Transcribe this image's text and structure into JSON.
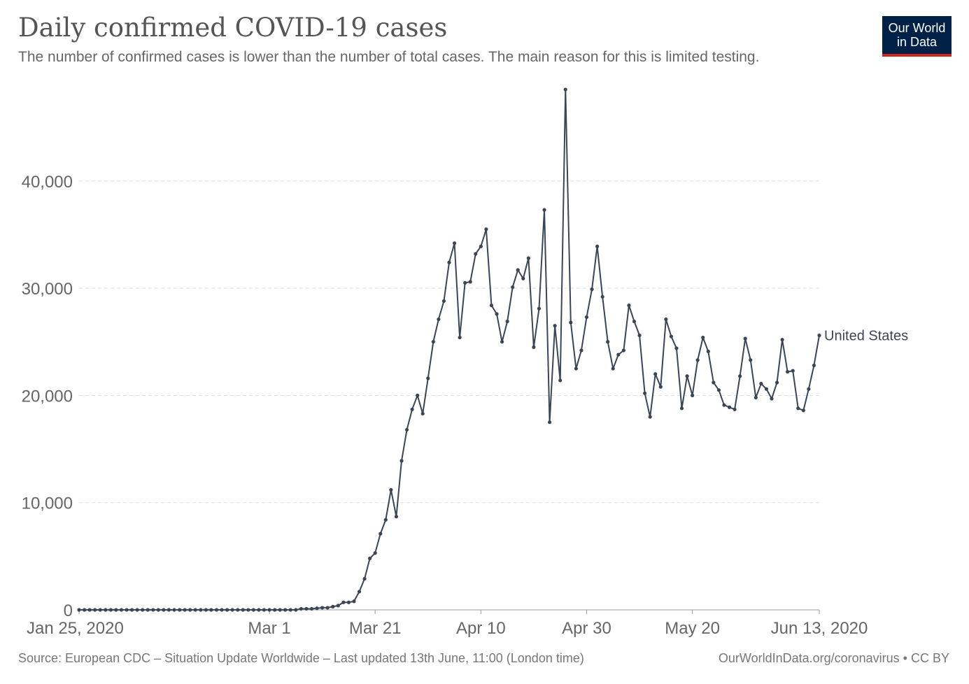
{
  "header": {
    "title": "Daily confirmed COVID-19 cases",
    "subtitle": "The number of confirmed cases is lower than the number of total cases. The main reason for this is limited testing."
  },
  "logo": {
    "line1": "Our World",
    "line2": "in Data",
    "background": "#002147",
    "accent": "#ce261e"
  },
  "footer": {
    "source": "Source: European CDC – Situation Update Worldwide – Last updated 13th June, 11:00 (London time)",
    "link": "OurWorldInData.org/coronavirus • CC BY"
  },
  "colors": {
    "series": "#3a4556",
    "grid": "#dddddd",
    "axis": "#999999",
    "text": "#666666"
  },
  "chart_data": {
    "type": "line",
    "title": "Daily confirmed COVID-19 cases",
    "xlabel": "",
    "ylabel": "",
    "x_start": "2020-01-25",
    "x_end": "2020-06-13",
    "xlim": [
      "Jan 25, 2020",
      "Jun 13, 2020"
    ],
    "ylim": [
      0,
      48529
    ],
    "y_ticks": [
      0,
      10000,
      20000,
      30000,
      40000
    ],
    "y_tick_labels": [
      "0",
      "10,000",
      "20,000",
      "30,000",
      "40,000"
    ],
    "x_ticks": [
      "2020-01-25",
      "2020-03-01",
      "2020-03-21",
      "2020-04-10",
      "2020-04-30",
      "2020-05-20",
      "2020-06-13"
    ],
    "x_tick_labels": [
      "Jan 25, 2020",
      "Mar 1",
      "Mar 21",
      "Apr 10",
      "Apr 30",
      "May 20",
      "Jun 13, 2020"
    ],
    "grid": "horizontal dashed",
    "legend": "inline label at line end",
    "series": [
      {
        "name": "United States",
        "color": "#3a4556",
        "values": [
          0,
          0,
          0,
          0,
          0,
          0,
          0,
          0,
          0,
          0,
          0,
          0,
          0,
          0,
          0,
          0,
          0,
          0,
          0,
          0,
          0,
          0,
          0,
          0,
          0,
          0,
          0,
          0,
          0,
          0,
          0,
          0,
          0,
          0,
          0,
          0,
          0,
          0,
          0,
          0,
          0,
          0,
          100,
          100,
          100,
          150,
          200,
          200,
          300,
          400,
          700,
          700,
          800,
          1700,
          2900,
          4800,
          5300,
          7100,
          8400,
          11200,
          8700,
          13900,
          16800,
          18700,
          20000,
          18300,
          21600,
          25000,
          27100,
          28800,
          32400,
          34200,
          25400,
          30500,
          30600,
          33200,
          33900,
          35500,
          28400,
          27600,
          25000,
          26900,
          30100,
          31700,
          30900,
          32800,
          24500,
          28100,
          37300,
          17500,
          26500,
          21400,
          48529,
          26800,
          22500,
          24200,
          27300,
          29900,
          33900,
          29200,
          25000,
          22500,
          23800,
          24200,
          28400,
          26900,
          25600,
          20200,
          18000,
          22000,
          20800,
          27100,
          25500,
          24400,
          18800,
          21800,
          20000,
          23300,
          25400,
          24100,
          21200,
          20500,
          19100,
          18900,
          18700,
          21800,
          25300,
          23300,
          19800,
          21100,
          20600,
          19700,
          21200,
          25200,
          22200,
          22300,
          18800,
          18600,
          20600,
          22800,
          25600
        ]
      }
    ]
  }
}
